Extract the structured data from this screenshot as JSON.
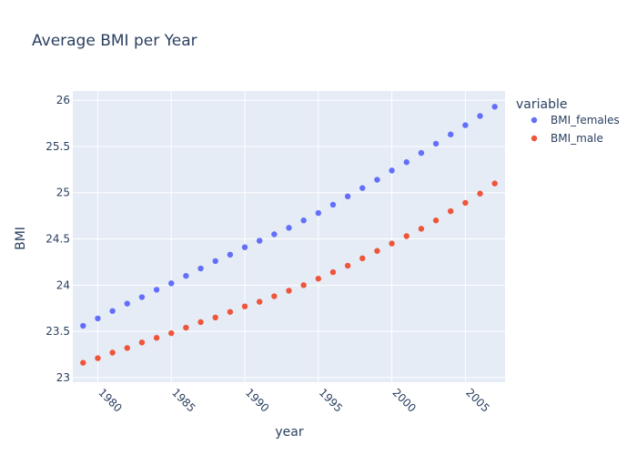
{
  "colors": {
    "plot_background": "#e5ecf6",
    "paper_background": "#ffffff",
    "grid": "#ffffff",
    "text": "#2a3f5f",
    "series_females": "#636efa",
    "series_male": "#ef553b"
  },
  "chart_data": {
    "type": "scatter",
    "title": "Average BMI per Year",
    "xlabel": "year",
    "ylabel": "BMI",
    "xlim": [
      1978.3,
      2007.7
    ],
    "ylim": [
      22.95,
      26.1
    ],
    "x_ticks": [
      1980,
      1985,
      1990,
      1995,
      2000,
      2005
    ],
    "x_tick_labels": [
      "1980",
      "1985",
      "1990",
      "1995",
      "2000",
      "2005"
    ],
    "y_ticks": [
      23,
      23.5,
      24,
      24.5,
      25,
      25.5,
      26
    ],
    "y_tick_labels": [
      "23",
      "23.5",
      "24",
      "24.5",
      "25",
      "25.5",
      "26"
    ],
    "grid": true,
    "legend_title": "variable",
    "legend_position": "right",
    "x": [
      1979,
      1980,
      1981,
      1982,
      1983,
      1984,
      1985,
      1986,
      1987,
      1988,
      1989,
      1990,
      1991,
      1992,
      1993,
      1994,
      1995,
      1996,
      1997,
      1998,
      1999,
      2000,
      2001,
      2002,
      2003,
      2004,
      2005,
      2006,
      2007
    ],
    "series": [
      {
        "name": "BMI_females",
        "color": "#636efa",
        "values": [
          23.56,
          23.64,
          23.72,
          23.8,
          23.87,
          23.95,
          24.02,
          24.1,
          24.18,
          24.26,
          24.33,
          24.41,
          24.48,
          24.55,
          24.62,
          24.7,
          24.78,
          24.87,
          24.96,
          25.05,
          25.14,
          25.24,
          25.33,
          25.43,
          25.53,
          25.63,
          25.73,
          25.83,
          25.93
        ]
      },
      {
        "name": "BMI_male",
        "color": "#ef553b",
        "values": [
          23.16,
          23.21,
          23.27,
          23.32,
          23.38,
          23.43,
          23.48,
          23.54,
          23.6,
          23.65,
          23.71,
          23.77,
          23.82,
          23.88,
          23.94,
          24.0,
          24.07,
          24.14,
          24.21,
          24.29,
          24.37,
          24.45,
          24.53,
          24.61,
          24.7,
          24.8,
          24.89,
          24.99,
          25.1
        ]
      }
    ]
  }
}
